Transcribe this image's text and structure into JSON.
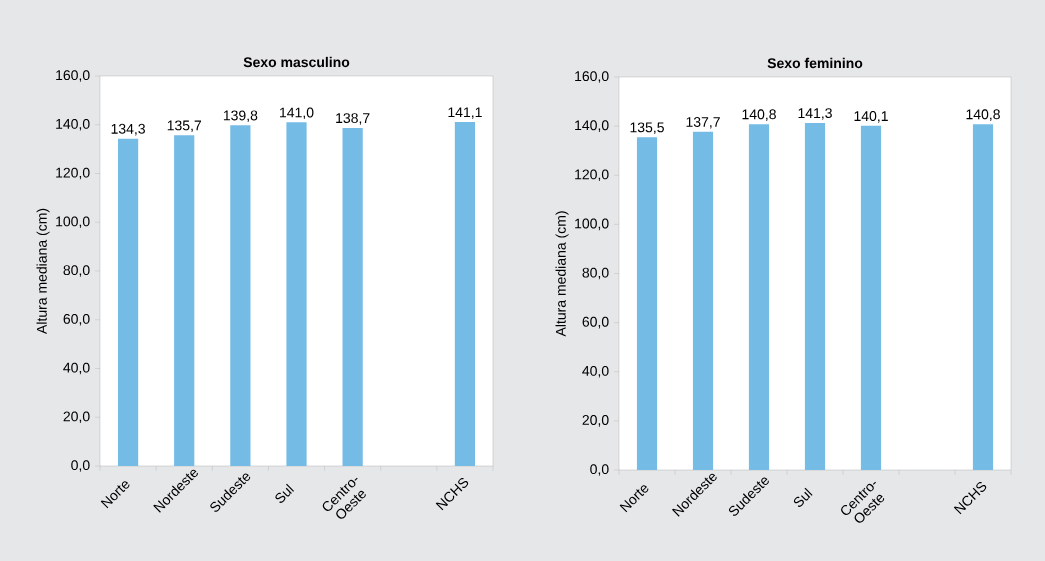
{
  "chart_data": [
    {
      "type": "bar",
      "title": "Sexo masculino",
      "ylabel": "Altura mediana (cm)",
      "categories": [
        "Norte",
        "Nordeste",
        "Sudeste",
        "Sul",
        "Centro-Oeste",
        null,
        "NCHS"
      ],
      "values": [
        134.3,
        135.7,
        139.8,
        141.0,
        138.7,
        null,
        141.1
      ],
      "value_labels": [
        "134,3",
        "135,7",
        "139,8",
        "141,0",
        "138,7",
        null,
        "141,1"
      ],
      "color": "#74bbe6",
      "ylim": [
        0,
        160
      ],
      "yticks": [
        {
          "value": 0,
          "label": "0,0"
        },
        {
          "value": 20,
          "label": "20,0"
        },
        {
          "value": 40,
          "label": "40,0"
        },
        {
          "value": 60,
          "label": "60,0"
        },
        {
          "value": 80,
          "label": "80,0"
        },
        {
          "value": 100,
          "label": "100,0"
        },
        {
          "value": 120,
          "label": "120,0"
        },
        {
          "value": 140,
          "label": "140,0"
        },
        {
          "value": 160,
          "label": "160,0"
        }
      ]
    },
    {
      "type": "bar",
      "title": "Sexo feminino",
      "ylabel": "Altura mediana (cm)",
      "categories": [
        "Norte",
        "Nordeste",
        "Sudeste",
        "Sul",
        "Centro-Oeste",
        null,
        "NCHS"
      ],
      "values": [
        135.5,
        137.7,
        140.8,
        141.3,
        140.1,
        null,
        140.8
      ],
      "value_labels": [
        "135,5",
        "137,7",
        "140,8",
        "141,3",
        "140,1",
        null,
        "140,8"
      ],
      "color": "#74bbe6",
      "ylim": [
        0,
        160
      ],
      "yticks": [
        {
          "value": 0,
          "label": "0,0"
        },
        {
          "value": 20,
          "label": "20,0"
        },
        {
          "value": 40,
          "label": "40,0"
        },
        {
          "value": 60,
          "label": "60,0"
        },
        {
          "value": 80,
          "label": "80,0"
        },
        {
          "value": 100,
          "label": "100,0"
        },
        {
          "value": 120,
          "label": "120,0"
        },
        {
          "value": 140,
          "label": "140,0"
        },
        {
          "value": 160,
          "label": "160,0"
        }
      ]
    }
  ]
}
